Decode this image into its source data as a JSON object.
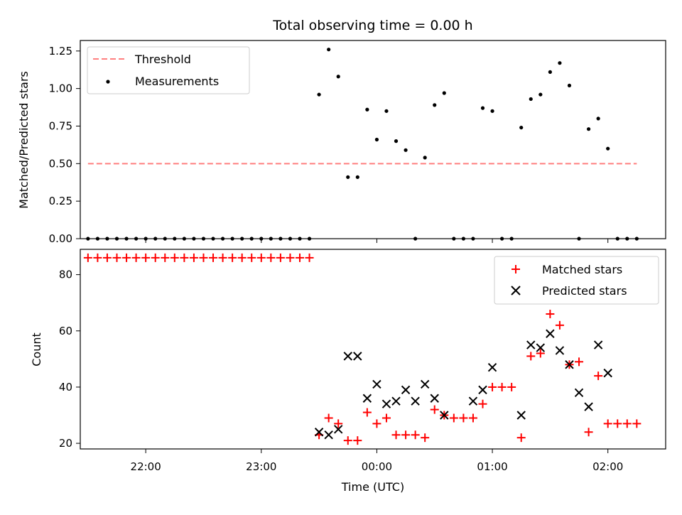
{
  "chart_data": [
    {
      "type": "scatter",
      "title": "Total observing time = 0.00 h",
      "xlabel": "",
      "ylabel": "Matched/Predicted stars",
      "x_axis": "time (UTC)",
      "xlim": [
        "21:26",
        "02:30"
      ],
      "ylim": [
        0,
        1.32
      ],
      "yticks": [
        "0.00",
        "0.25",
        "0.50",
        "0.75",
        "1.00",
        "1.25"
      ],
      "legend_position": "upper-left",
      "threshold": {
        "name": "Threshold",
        "value": 0.5,
        "x_range": [
          "21:30",
          "02:15"
        ],
        "color": "#ff7f7f"
      },
      "series": [
        {
          "name": "Measurements",
          "color": "#000000",
          "x": [
            "21:30",
            "21:35",
            "21:40",
            "21:45",
            "21:50",
            "21:55",
            "22:00",
            "22:05",
            "22:10",
            "22:15",
            "22:20",
            "22:25",
            "22:30",
            "22:35",
            "22:40",
            "22:45",
            "22:50",
            "22:55",
            "23:00",
            "23:05",
            "23:10",
            "23:15",
            "23:20",
            "23:25",
            "23:30",
            "23:35",
            "23:40",
            "23:45",
            "23:50",
            "23:55",
            "00:00",
            "00:05",
            "00:10",
            "00:15",
            "00:20",
            "00:25",
            "00:30",
            "00:35",
            "00:40",
            "00:45",
            "00:50",
            "00:55",
            "01:00",
            "01:05",
            "01:10",
            "01:15",
            "01:20",
            "01:25",
            "01:30",
            "01:35",
            "01:40",
            "01:45",
            "01:50",
            "01:55",
            "02:00",
            "02:05",
            "02:10",
            "02:15"
          ],
          "y": [
            0,
            0,
            0,
            0,
            0,
            0,
            0,
            0,
            0,
            0,
            0,
            0,
            0,
            0,
            0,
            0,
            0,
            0,
            0,
            0,
            0,
            0,
            0,
            0,
            0.96,
            1.26,
            1.08,
            0.41,
            0.41,
            0.86,
            0.66,
            0.85,
            0.65,
            0.59,
            0,
            0.54,
            0.89,
            0.97,
            0,
            0,
            0,
            0.87,
            0.85,
            0,
            0,
            0.74,
            0.93,
            0.96,
            1.11,
            1.17,
            1.02,
            0,
            0.73,
            0.8,
            0.6,
            0,
            0,
            0
          ]
        }
      ]
    },
    {
      "type": "scatter",
      "title": "",
      "xlabel": "Time (UTC)",
      "ylabel": "Count",
      "xlim": [
        "21:26",
        "02:30"
      ],
      "ylim": [
        18,
        89
      ],
      "yticks": [
        "20",
        "40",
        "60",
        "80"
      ],
      "xticks": [
        "22:00",
        "23:00",
        "00:00",
        "01:00",
        "02:00"
      ],
      "legend_position": "upper-right",
      "series": [
        {
          "name": "Matched stars",
          "color": "#ff0000",
          "marker": "plus",
          "x": [
            "21:30",
            "21:35",
            "21:40",
            "21:45",
            "21:50",
            "21:55",
            "22:00",
            "22:05",
            "22:10",
            "22:15",
            "22:20",
            "22:25",
            "22:30",
            "22:35",
            "22:40",
            "22:45",
            "22:50",
            "22:55",
            "23:00",
            "23:05",
            "23:10",
            "23:15",
            "23:20",
            "23:25",
            "23:30",
            "23:35",
            "23:40",
            "23:45",
            "23:50",
            "23:55",
            "00:00",
            "00:05",
            "00:10",
            "00:15",
            "00:20",
            "00:25",
            "00:30",
            "00:35",
            "00:40",
            "00:45",
            "00:50",
            "00:55",
            "01:00",
            "01:05",
            "01:10",
            "01:15",
            "01:20",
            "01:25",
            "01:30",
            "01:35",
            "01:40",
            "01:45",
            "01:50",
            "01:55",
            "02:00",
            "02:05",
            "02:10",
            "02:15"
          ],
          "y": [
            86,
            86,
            86,
            86,
            86,
            86,
            86,
            86,
            86,
            86,
            86,
            86,
            86,
            86,
            86,
            86,
            86,
            86,
            86,
            86,
            86,
            86,
            86,
            86,
            23,
            29,
            27,
            21,
            21,
            31,
            27,
            29,
            23,
            23,
            23,
            22,
            32,
            30,
            29,
            29,
            29,
            34,
            40,
            40,
            40,
            22,
            51,
            52,
            66,
            62,
            48,
            49,
            24,
            44,
            27,
            27,
            27,
            27
          ]
        },
        {
          "name": "Predicted stars",
          "color": "#000000",
          "marker": "x",
          "x": [
            "23:30",
            "23:35",
            "23:40",
            "23:45",
            "23:50",
            "23:55",
            "00:00",
            "00:05",
            "00:10",
            "00:15",
            "00:20",
            "00:25",
            "00:30",
            "00:35",
            "00:50",
            "00:55",
            "01:00",
            "01:15",
            "01:20",
            "01:25",
            "01:30",
            "01:35",
            "01:40",
            "01:45",
            "01:50",
            "01:55",
            "02:00"
          ],
          "y": [
            24,
            23,
            25,
            51,
            51,
            36,
            41,
            34,
            35,
            39,
            35,
            41,
            36,
            30,
            35,
            39,
            47,
            30,
            55,
            54,
            59,
            53,
            48,
            38,
            33,
            55,
            45
          ]
        }
      ]
    }
  ]
}
